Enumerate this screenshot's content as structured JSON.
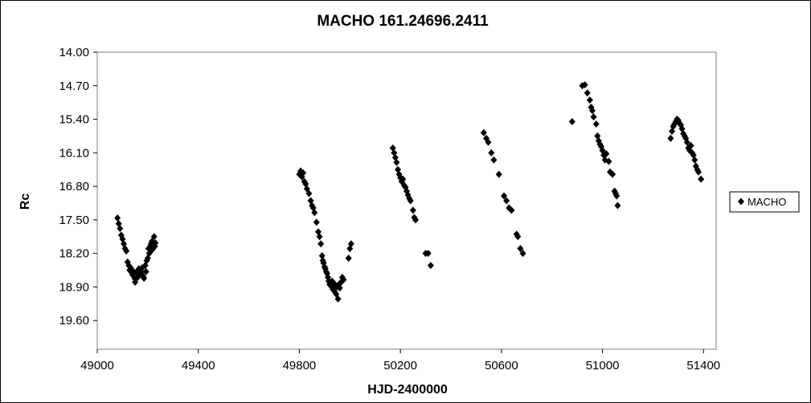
{
  "chart_data": {
    "type": "scatter",
    "title": "MACHO 161.24696.2411",
    "xlabel": "HJD-2400000",
    "ylabel": "Rc",
    "xlim": [
      49000,
      51450
    ],
    "ylim": [
      20.2,
      14.0
    ],
    "y_axis_reversed": true,
    "x_ticks": [
      "49000",
      "49400",
      "49800",
      "50200",
      "50600",
      "51000",
      "51400"
    ],
    "y_ticks": [
      "14.00",
      "14.70",
      "15.40",
      "16.10",
      "16.80",
      "17.50",
      "18.20",
      "18.90",
      "19.60"
    ],
    "grid": false,
    "legend_position": "right",
    "marker": "diamond",
    "marker_color": "#000000",
    "series": [
      {
        "name": "MACHO",
        "points": [
          [
            49080,
            17.46
          ],
          [
            49085,
            17.58
          ],
          [
            49090,
            17.68
          ],
          [
            49095,
            17.82
          ],
          [
            49100,
            17.9
          ],
          [
            49105,
            18.0
          ],
          [
            49110,
            18.1
          ],
          [
            49115,
            18.15
          ],
          [
            49120,
            18.38
          ],
          [
            49125,
            18.45
          ],
          [
            49128,
            18.55
          ],
          [
            49132,
            18.5
          ],
          [
            49136,
            18.6
          ],
          [
            49140,
            18.65
          ],
          [
            49145,
            18.58
          ],
          [
            49148,
            18.72
          ],
          [
            49150,
            18.8
          ],
          [
            49155,
            18.6
          ],
          [
            49160,
            18.7
          ],
          [
            49165,
            18.52
          ],
          [
            49170,
            18.62
          ],
          [
            49175,
            18.58
          ],
          [
            49178,
            18.5
          ],
          [
            49182,
            18.68
          ],
          [
            49185,
            18.72
          ],
          [
            49190,
            18.45
          ],
          [
            49193,
            18.58
          ],
          [
            49196,
            18.35
          ],
          [
            49200,
            18.3
          ],
          [
            49203,
            18.1
          ],
          [
            49206,
            18.2
          ],
          [
            49210,
            18.05
          ],
          [
            49213,
            18.0
          ],
          [
            49216,
            17.95
          ],
          [
            49218,
            18.12
          ],
          [
            49222,
            18.0
          ],
          [
            49225,
            17.85
          ],
          [
            49228,
            18.05
          ],
          [
            49230,
            17.98
          ],
          [
            49800,
            16.55
          ],
          [
            49805,
            16.48
          ],
          [
            49810,
            16.6
          ],
          [
            49815,
            16.52
          ],
          [
            49820,
            16.7
          ],
          [
            49825,
            16.75
          ],
          [
            49830,
            16.85
          ],
          [
            49838,
            16.95
          ],
          [
            49845,
            17.1
          ],
          [
            49850,
            17.2
          ],
          [
            49855,
            17.25
          ],
          [
            49860,
            17.35
          ],
          [
            49868,
            17.55
          ],
          [
            49875,
            17.75
          ],
          [
            49880,
            17.85
          ],
          [
            49885,
            18.0
          ],
          [
            49890,
            18.25
          ],
          [
            49893,
            18.35
          ],
          [
            49896,
            18.4
          ],
          [
            49900,
            18.48
          ],
          [
            49903,
            18.52
          ],
          [
            49906,
            18.58
          ],
          [
            49910,
            18.62
          ],
          [
            49913,
            18.7
          ],
          [
            49916,
            18.78
          ],
          [
            49920,
            18.85
          ],
          [
            49924,
            18.8
          ],
          [
            49928,
            18.9
          ],
          [
            49930,
            18.78
          ],
          [
            49933,
            18.95
          ],
          [
            49936,
            18.82
          ],
          [
            49940,
            19.0
          ],
          [
            49943,
            18.88
          ],
          [
            49946,
            19.05
          ],
          [
            49950,
            18.9
          ],
          [
            49953,
            19.15
          ],
          [
            49956,
            18.85
          ],
          [
            49960,
            18.92
          ],
          [
            49965,
            18.8
          ],
          [
            49970,
            18.7
          ],
          [
            49975,
            18.75
          ],
          [
            49995,
            18.3
          ],
          [
            50000,
            18.1
          ],
          [
            50005,
            18.0
          ],
          [
            50170,
            16.0
          ],
          [
            50175,
            16.1
          ],
          [
            50180,
            16.2
          ],
          [
            50185,
            16.3
          ],
          [
            50190,
            16.45
          ],
          [
            50195,
            16.55
          ],
          [
            50200,
            16.62
          ],
          [
            50205,
            16.7
          ],
          [
            50210,
            16.65
          ],
          [
            50215,
            16.78
          ],
          [
            50220,
            16.82
          ],
          [
            50225,
            16.9
          ],
          [
            50230,
            16.98
          ],
          [
            50235,
            17.05
          ],
          [
            50240,
            17.1
          ],
          [
            50250,
            17.3
          ],
          [
            50255,
            17.45
          ],
          [
            50260,
            17.5
          ],
          [
            50300,
            18.2
          ],
          [
            50310,
            18.2
          ],
          [
            50320,
            18.45
          ],
          [
            50530,
            15.68
          ],
          [
            50540,
            15.8
          ],
          [
            50548,
            15.88
          ],
          [
            50560,
            16.1
          ],
          [
            50570,
            16.25
          ],
          [
            50590,
            16.55
          ],
          [
            50610,
            17.0
          ],
          [
            50620,
            17.1
          ],
          [
            50630,
            17.25
          ],
          [
            50640,
            17.3
          ],
          [
            50660,
            17.8
          ],
          [
            50665,
            17.85
          ],
          [
            50675,
            18.1
          ],
          [
            50685,
            18.2
          ],
          [
            50880,
            15.45
          ],
          [
            50920,
            14.7
          ],
          [
            50930,
            14.68
          ],
          [
            50940,
            14.85
          ],
          [
            50950,
            15.0
          ],
          [
            50955,
            15.15
          ],
          [
            50960,
            15.22
          ],
          [
            50965,
            15.35
          ],
          [
            50975,
            15.5
          ],
          [
            50980,
            15.75
          ],
          [
            50985,
            15.85
          ],
          [
            50990,
            15.92
          ],
          [
            50995,
            15.97
          ],
          [
            51000,
            16.05
          ],
          [
            51005,
            16.15
          ],
          [
            51010,
            16.25
          ],
          [
            51015,
            16.12
          ],
          [
            51025,
            16.28
          ],
          [
            51030,
            16.5
          ],
          [
            51040,
            16.55
          ],
          [
            51048,
            16.9
          ],
          [
            51052,
            16.95
          ],
          [
            51056,
            17.0
          ],
          [
            51060,
            17.2
          ],
          [
            51270,
            15.8
          ],
          [
            51275,
            15.65
          ],
          [
            51280,
            15.55
          ],
          [
            51285,
            15.5
          ],
          [
            51290,
            15.45
          ],
          [
            51295,
            15.4
          ],
          [
            51300,
            15.42
          ],
          [
            51305,
            15.48
          ],
          [
            51310,
            15.52
          ],
          [
            51315,
            15.6
          ],
          [
            51320,
            15.7
          ],
          [
            51325,
            15.75
          ],
          [
            51330,
            15.8
          ],
          [
            51335,
            15.88
          ],
          [
            51340,
            16.0
          ],
          [
            51345,
            16.05
          ],
          [
            51350,
            15.95
          ],
          [
            51355,
            16.1
          ],
          [
            51360,
            16.15
          ],
          [
            51365,
            16.25
          ],
          [
            51370,
            16.38
          ],
          [
            51375,
            16.45
          ],
          [
            51380,
            16.5
          ],
          [
            51390,
            16.65
          ]
        ]
      }
    ]
  }
}
